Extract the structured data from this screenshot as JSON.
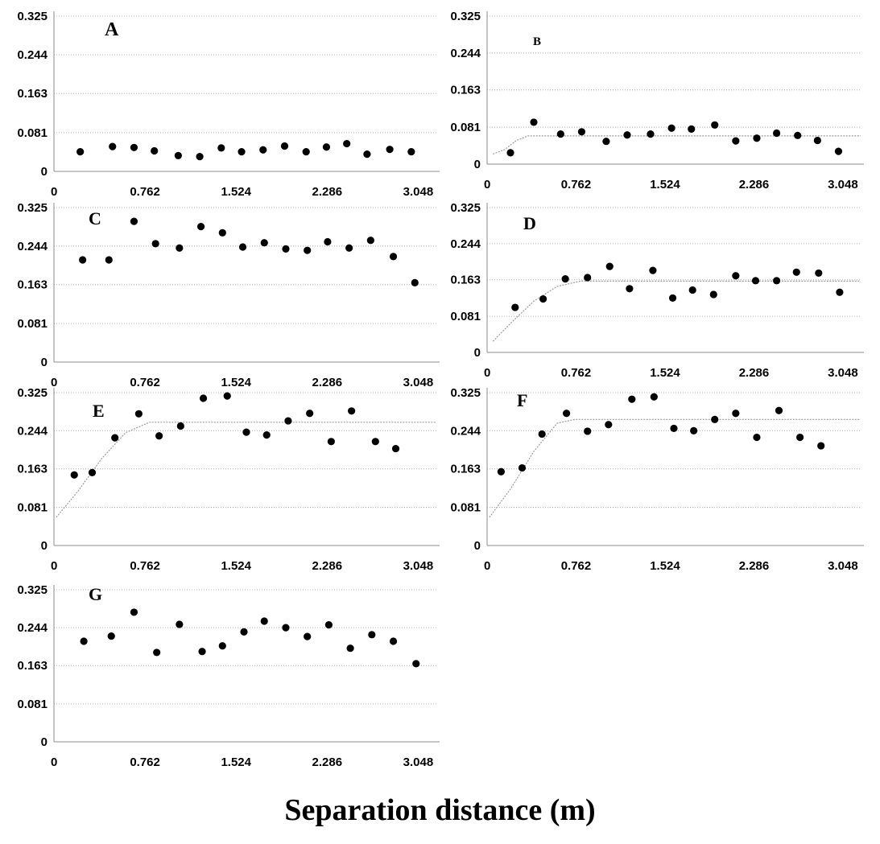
{
  "figure": {
    "shared_xlabel": "Separation distance (m)"
  },
  "chart_data": [
    {
      "panel": "A",
      "type": "scatter",
      "title": "",
      "xlabel": "",
      "ylabel": "",
      "xlim": [
        0,
        3.2
      ],
      "ylim": [
        0,
        0.325
      ],
      "xticks": [
        0,
        0.762,
        1.524,
        2.286,
        3.048
      ],
      "xtick_labels": [
        "0",
        "0.762",
        "1.524",
        "2.286",
        "3.048"
      ],
      "yticks": [
        0,
        0.081,
        0.163,
        0.244,
        0.325
      ],
      "ytick_labels": [
        "0",
        "0.081",
        "0.163",
        "0.244",
        "0.325"
      ],
      "x": [
        0.22,
        0.49,
        0.67,
        0.84,
        1.04,
        1.22,
        1.4,
        1.57,
        1.75,
        1.93,
        2.11,
        2.28,
        2.45,
        2.62,
        2.81,
        2.99
      ],
      "y": [
        0.041,
        0.052,
        0.05,
        0.043,
        0.033,
        0.031,
        0.049,
        0.041,
        0.045,
        0.053,
        0.041,
        0.051,
        0.058,
        0.036,
        0.046,
        0.041
      ],
      "fit": []
    },
    {
      "panel": "B",
      "type": "scatter",
      "title": "",
      "xlabel": "",
      "ylabel": "",
      "xlim": [
        0,
        3.2
      ],
      "ylim": [
        0,
        0.325
      ],
      "xticks": [
        0,
        0.762,
        1.524,
        2.286,
        3.048
      ],
      "xtick_labels": [
        "0",
        "0.762",
        "1.524",
        "2.286",
        "3.048"
      ],
      "yticks": [
        0,
        0.081,
        0.163,
        0.244,
        0.325
      ],
      "ytick_labels": [
        "0",
        "0.081",
        "0.163",
        "0.244",
        "0.325"
      ],
      "x": [
        0.2,
        0.4,
        0.63,
        0.81,
        1.02,
        1.2,
        1.4,
        1.58,
        1.75,
        1.95,
        2.13,
        2.31,
        2.48,
        2.66,
        2.83,
        3.01
      ],
      "y": [
        0.025,
        0.092,
        0.066,
        0.071,
        0.05,
        0.064,
        0.066,
        0.079,
        0.077,
        0.086,
        0.051,
        0.057,
        0.068,
        0.063,
        0.052,
        0.028
      ],
      "fit": [
        [
          0.05,
          0.022
        ],
        [
          0.15,
          0.032
        ],
        [
          0.25,
          0.052
        ],
        [
          0.35,
          0.062
        ],
        [
          0.5,
          0.062
        ],
        [
          3.2,
          0.062
        ]
      ]
    },
    {
      "panel": "C",
      "type": "scatter",
      "title": "",
      "xlabel": "",
      "ylabel": "",
      "xlim": [
        0,
        3.2
      ],
      "ylim": [
        0,
        0.325
      ],
      "xticks": [
        0,
        0.762,
        1.524,
        2.286,
        3.048
      ],
      "xtick_labels": [
        "0",
        "0.762",
        "1.524",
        "2.286",
        "3.048"
      ],
      "yticks": [
        0,
        0.081,
        0.163,
        0.244,
        0.325
      ],
      "ytick_labels": [
        "0",
        "0.081",
        "0.163",
        "0.244",
        "0.325"
      ],
      "x": [
        0.24,
        0.46,
        0.67,
        0.85,
        1.05,
        1.23,
        1.41,
        1.58,
        1.76,
        1.94,
        2.12,
        2.29,
        2.47,
        2.65,
        2.84,
        3.02
      ],
      "y": [
        0.215,
        0.215,
        0.296,
        0.249,
        0.24,
        0.285,
        0.272,
        0.242,
        0.251,
        0.238,
        0.235,
        0.253,
        0.24,
        0.256,
        0.222,
        0.167
      ],
      "fit": []
    },
    {
      "panel": "D",
      "type": "scatter",
      "title": "",
      "xlabel": "",
      "ylabel": "",
      "xlim": [
        0,
        3.2
      ],
      "ylim": [
        0,
        0.325
      ],
      "xticks": [
        0,
        0.762,
        1.524,
        2.286,
        3.048
      ],
      "xtick_labels": [
        "0",
        "0.762",
        "1.524",
        "2.286",
        "3.048"
      ],
      "yticks": [
        0,
        0.081,
        0.163,
        0.244,
        0.325
      ],
      "ytick_labels": [
        "0",
        "0.081",
        "0.163",
        "0.244",
        "0.325"
      ],
      "x": [
        0.24,
        0.48,
        0.67,
        0.86,
        1.05,
        1.22,
        1.42,
        1.59,
        1.76,
        1.94,
        2.13,
        2.3,
        2.48,
        2.65,
        2.84,
        3.02
      ],
      "y": [
        0.101,
        0.12,
        0.165,
        0.168,
        0.193,
        0.143,
        0.184,
        0.122,
        0.14,
        0.13,
        0.172,
        0.161,
        0.161,
        0.18,
        0.178,
        0.135
      ],
      "fit": [
        [
          0.05,
          0.025
        ],
        [
          0.2,
          0.065
        ],
        [
          0.4,
          0.115
        ],
        [
          0.6,
          0.148
        ],
        [
          0.8,
          0.16
        ],
        [
          3.2,
          0.16
        ]
      ]
    },
    {
      "panel": "E",
      "type": "scatter",
      "title": "",
      "xlabel": "",
      "ylabel": "",
      "xlim": [
        0,
        3.2
      ],
      "ylim": [
        0,
        0.325
      ],
      "xticks": [
        0,
        0.762,
        1.524,
        2.286,
        3.048
      ],
      "xtick_labels": [
        "0",
        "0.762",
        "1.524",
        "2.286",
        "3.048"
      ],
      "yticks": [
        0,
        0.081,
        0.163,
        0.244,
        0.325
      ],
      "ytick_labels": [
        "0",
        "0.081",
        "0.163",
        "0.244",
        "0.325"
      ],
      "x": [
        0.17,
        0.32,
        0.51,
        0.71,
        0.88,
        1.06,
        1.25,
        1.45,
        1.61,
        1.78,
        1.96,
        2.14,
        2.32,
        2.49,
        2.69,
        2.86
      ],
      "y": [
        0.15,
        0.155,
        0.229,
        0.28,
        0.233,
        0.254,
        0.313,
        0.318,
        0.241,
        0.235,
        0.265,
        0.281,
        0.221,
        0.286,
        0.221,
        0.206
      ],
      "fit": [
        [
          0.02,
          0.06
        ],
        [
          0.2,
          0.115
        ],
        [
          0.4,
          0.185
        ],
        [
          0.6,
          0.24
        ],
        [
          0.8,
          0.262
        ],
        [
          3.2,
          0.262
        ]
      ]
    },
    {
      "panel": "F",
      "type": "scatter",
      "title": "",
      "xlabel": "",
      "ylabel": "",
      "xlim": [
        0,
        3.2
      ],
      "ylim": [
        0,
        0.325
      ],
      "xticks": [
        0,
        0.762,
        1.524,
        2.286,
        3.048
      ],
      "xtick_labels": [
        "0",
        "0.762",
        "1.524",
        "2.286",
        "3.048"
      ],
      "yticks": [
        0,
        0.081,
        0.163,
        0.244,
        0.325
      ],
      "ytick_labels": [
        "0",
        "0.081",
        "0.163",
        "0.244",
        "0.325"
      ],
      "x": [
        0.12,
        0.3,
        0.47,
        0.68,
        0.86,
        1.04,
        1.24,
        1.43,
        1.6,
        1.77,
        1.95,
        2.13,
        2.31,
        2.5,
        2.68,
        2.86
      ],
      "y": [
        0.157,
        0.165,
        0.237,
        0.281,
        0.243,
        0.257,
        0.311,
        0.316,
        0.249,
        0.244,
        0.268,
        0.281,
        0.23,
        0.287,
        0.23,
        0.212
      ],
      "fit": [
        [
          0.02,
          0.06
        ],
        [
          0.2,
          0.12
        ],
        [
          0.4,
          0.2
        ],
        [
          0.6,
          0.26
        ],
        [
          0.75,
          0.268
        ],
        [
          3.2,
          0.268
        ]
      ]
    },
    {
      "panel": "G",
      "type": "scatter",
      "title": "",
      "xlabel": "",
      "ylabel": "",
      "xlim": [
        0,
        3.2
      ],
      "ylim": [
        0,
        0.325
      ],
      "xticks": [
        0,
        0.762,
        1.524,
        2.286,
        3.048
      ],
      "xtick_labels": [
        "0",
        "0.762",
        "1.524",
        "2.286",
        "3.048"
      ],
      "yticks": [
        0,
        0.081,
        0.163,
        0.244,
        0.325
      ],
      "ytick_labels": [
        "0",
        "0.081",
        "0.163",
        "0.244",
        "0.325"
      ],
      "x": [
        0.25,
        0.48,
        0.67,
        0.86,
        1.05,
        1.24,
        1.41,
        1.59,
        1.76,
        1.94,
        2.12,
        2.3,
        2.48,
        2.66,
        2.84,
        3.03
      ],
      "y": [
        0.215,
        0.226,
        0.277,
        0.191,
        0.251,
        0.193,
        0.205,
        0.235,
        0.258,
        0.244,
        0.225,
        0.25,
        0.2,
        0.229,
        0.215,
        0.167
      ],
      "fit": []
    }
  ]
}
